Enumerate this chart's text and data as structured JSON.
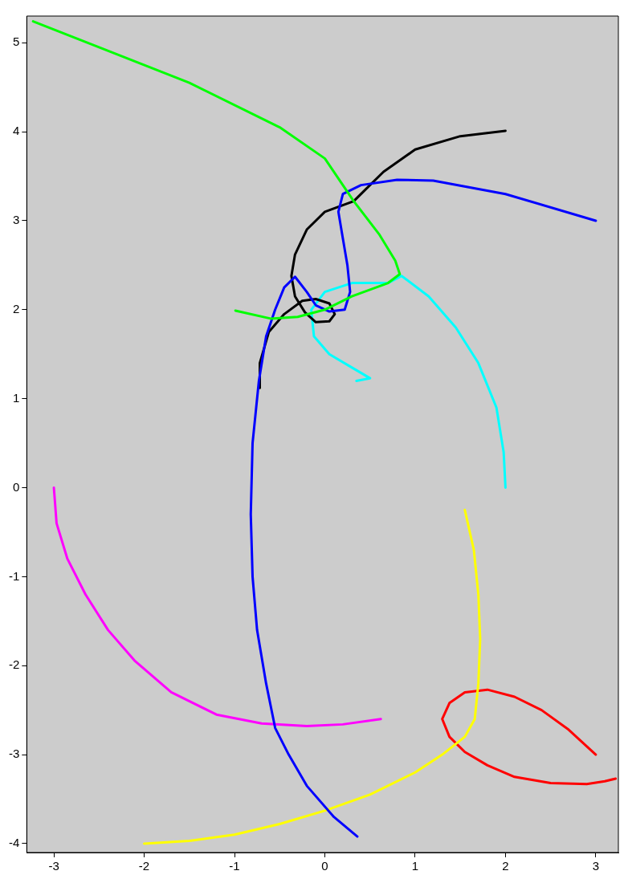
{
  "chart_data": {
    "type": "line",
    "xlim": [
      -3.3,
      3.25
    ],
    "ylim": [
      -4.1,
      5.3
    ],
    "xticks": [
      -3,
      -2,
      -1,
      0,
      1,
      2,
      3
    ],
    "yticks": [
      -4,
      -3,
      -2,
      -1,
      0,
      1,
      2,
      3,
      4,
      5
    ],
    "grid": false,
    "legend": false,
    "marker": "none",
    "line_style": "solid",
    "series": [
      {
        "color": "#00ff00",
        "x": [
          -3.23,
          -2.5,
          -1.5,
          -0.5,
          0,
          0.32,
          0.6,
          0.78,
          0.83,
          0.7,
          0.3,
          0,
          -0.3,
          -0.6,
          -0.99
        ],
        "values": [
          5.24,
          4.95,
          4.55,
          4.05,
          3.7,
          3.22,
          2.85,
          2.55,
          2.4,
          2.3,
          2.15,
          2.0,
          1.92,
          1.9,
          1.99
        ]
      },
      {
        "color": "#0000ff",
        "x": [
          3,
          2,
          1.2,
          0.8,
          0.4,
          0.2,
          0.15,
          0.2,
          0.25,
          0.28,
          0.22,
          0.05,
          -0.1,
          -0.2,
          -0.33,
          -0.45,
          -0.55,
          -0.65,
          -0.73,
          -0.8,
          -0.82,
          -0.8,
          -0.75,
          -0.65,
          -0.55,
          -0.4,
          -0.2,
          0.1,
          0.36
        ],
        "values": [
          3,
          3.3,
          3.45,
          3.46,
          3.4,
          3.3,
          3.1,
          2.8,
          2.5,
          2.2,
          2.0,
          1.98,
          2.05,
          2.2,
          2.37,
          2.25,
          2.0,
          1.7,
          1.2,
          0.5,
          -0.3,
          -1.0,
          -1.6,
          -2.2,
          -2.7,
          -3.0,
          -3.35,
          -3.7,
          -3.92
        ]
      },
      {
        "color": "#000000",
        "x": [
          -0.72,
          -0.72,
          -0.62,
          -0.45,
          -0.25,
          -0.1,
          0.05,
          0.11,
          0.05,
          -0.1,
          -0.22,
          -0.33,
          -0.37,
          -0.33,
          -0.2,
          0,
          0.32,
          0.45,
          0.65,
          1.0,
          1.5,
          2.0
        ],
        "values": [
          1.12,
          1.4,
          1.75,
          1.95,
          2.1,
          2.12,
          2.07,
          1.95,
          1.87,
          1.86,
          1.97,
          2.15,
          2.38,
          2.62,
          2.9,
          3.1,
          3.22,
          3.35,
          3.55,
          3.8,
          3.95,
          4.01
        ]
      },
      {
        "color": "#00ffff",
        "x": [
          2,
          1.98,
          1.9,
          1.7,
          1.45,
          1.15,
          0.85,
          0.7,
          0.3,
          0,
          -0.15,
          -0.12,
          0.05,
          0.3,
          0.5,
          0.35
        ],
        "values": [
          0,
          0.4,
          0.9,
          1.4,
          1.8,
          2.15,
          2.38,
          2.3,
          2.3,
          2.2,
          2.0,
          1.7,
          1.5,
          1.35,
          1.23,
          1.2
        ]
      },
      {
        "color": "#ff00ff",
        "x": [
          -3,
          -2.97,
          -2.85,
          -2.65,
          -2.4,
          -2.1,
          -1.7,
          -1.2,
          -0.7,
          -0.2,
          0.2,
          0.62
        ],
        "values": [
          0,
          -0.4,
          -0.8,
          -1.2,
          -1.6,
          -1.95,
          -2.3,
          -2.55,
          -2.65,
          -2.68,
          -2.66,
          -2.6
        ]
      },
      {
        "color": "#ffff00",
        "x": [
          1.55,
          1.65,
          1.7,
          1.72,
          1.7,
          1.66,
          1.55,
          1.3,
          1.0,
          0.5,
          0,
          -0.5,
          -1,
          -1.5,
          -2
        ],
        "values": [
          -0.25,
          -0.7,
          -1.2,
          -1.7,
          -2.2,
          -2.6,
          -2.8,
          -3.0,
          -3.2,
          -3.45,
          -3.63,
          -3.78,
          -3.9,
          -3.97,
          -4.0
        ]
      },
      {
        "color": "#ff0000",
        "x": [
          3,
          2.7,
          2.4,
          2.1,
          1.8,
          1.55,
          1.38,
          1.3,
          1.38,
          1.55,
          1.8,
          2.1,
          2.5,
          2.9,
          3.1,
          3.22
        ],
        "values": [
          -3,
          -2.72,
          -2.5,
          -2.35,
          -2.27,
          -2.3,
          -2.42,
          -2.6,
          -2.8,
          -2.97,
          -3.12,
          -3.25,
          -3.32,
          -3.33,
          -3.3,
          -3.27
        ]
      }
    ]
  }
}
